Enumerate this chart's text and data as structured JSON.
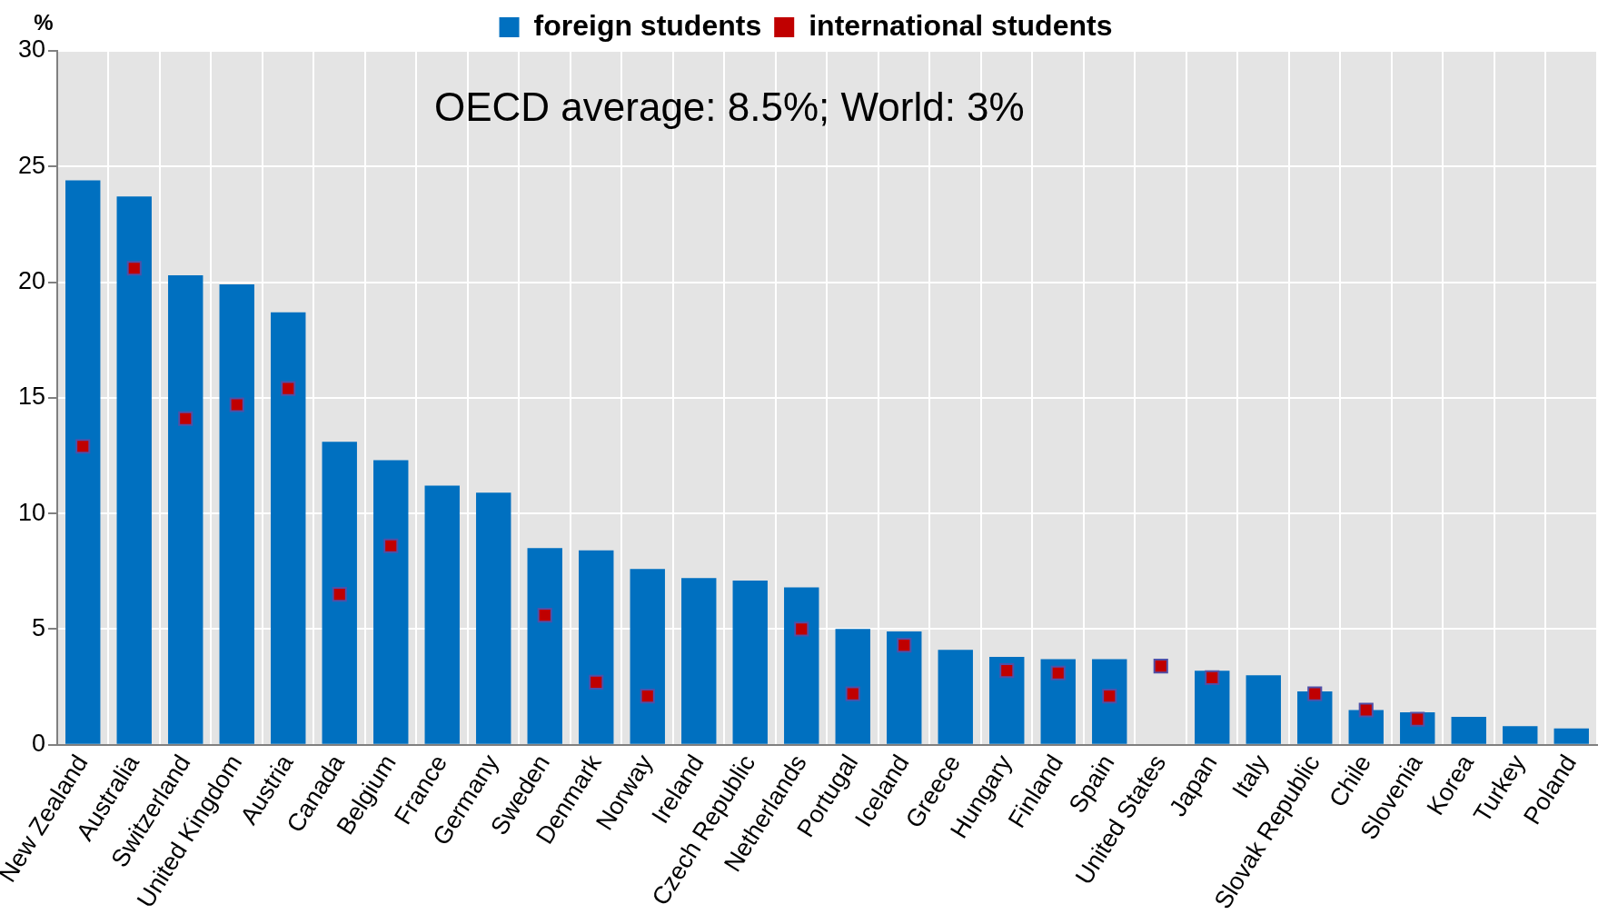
{
  "chart_data": {
    "type": "bar",
    "ylabel": "%",
    "annotations": [
      "OECD average: 8.5%; World: 3%"
    ],
    "categories": [
      "New Zealand",
      "Australia",
      "Switzerland",
      "United Kingdom",
      "Austria",
      "Canada",
      "Belgium",
      "France",
      "Germany",
      "Sweden",
      "Denmark",
      "Norway",
      "Ireland",
      "Czech Republic",
      "Netherlands",
      "Portugal",
      "Iceland",
      "Greece",
      "Hungary",
      "Finland",
      "Spain",
      "United States",
      "Japan",
      "Italy",
      "Slovak Republic",
      "Chile",
      "Slovenia",
      "Korea",
      "Turkey",
      "Poland"
    ],
    "series": [
      {
        "name": "foreign students",
        "type": "bar",
        "color": "#0070c0",
        "values": [
          24.4,
          23.7,
          20.3,
          19.9,
          18.7,
          13.1,
          12.3,
          11.2,
          10.9,
          8.5,
          8.4,
          7.6,
          7.2,
          7.1,
          6.8,
          5.0,
          4.9,
          4.1,
          3.8,
          3.7,
          3.7,
          null,
          3.2,
          3.0,
          2.3,
          1.5,
          1.4,
          1.2,
          0.8,
          0.7
        ]
      },
      {
        "name": "international students",
        "type": "scatter",
        "color": "#c00000",
        "marker": "square",
        "x": [
          "New Zealand",
          "Australia",
          "Switzerland",
          "United Kingdom",
          "Austria",
          "Canada",
          "Belgium",
          "France",
          "Germany",
          "Sweden",
          "Denmark",
          "Norway",
          "Ireland",
          "Czech Republic",
          "Netherlands",
          "Portugal",
          "Iceland",
          "Greece",
          "Hungary",
          "Finland",
          "Spain",
          "United States",
          "Japan",
          "Italy",
          "Slovak Republic",
          "Chile",
          "Slovenia",
          "Korea",
          "Turkey",
          "Poland"
        ],
        "values": [
          12.9,
          20.6,
          14.1,
          14.7,
          15.4,
          6.5,
          8.6,
          null,
          null,
          5.6,
          2.7,
          2.1,
          null,
          null,
          5.0,
          2.2,
          4.3,
          null,
          3.2,
          3.1,
          2.1,
          3.4,
          2.9,
          null,
          2.2,
          1.5,
          1.1,
          null,
          null,
          null
        ]
      }
    ],
    "ylim": [
      0,
      30
    ],
    "yticks": [
      0,
      5,
      10,
      15,
      20,
      25,
      30
    ],
    "grid": true,
    "legend": "top"
  }
}
